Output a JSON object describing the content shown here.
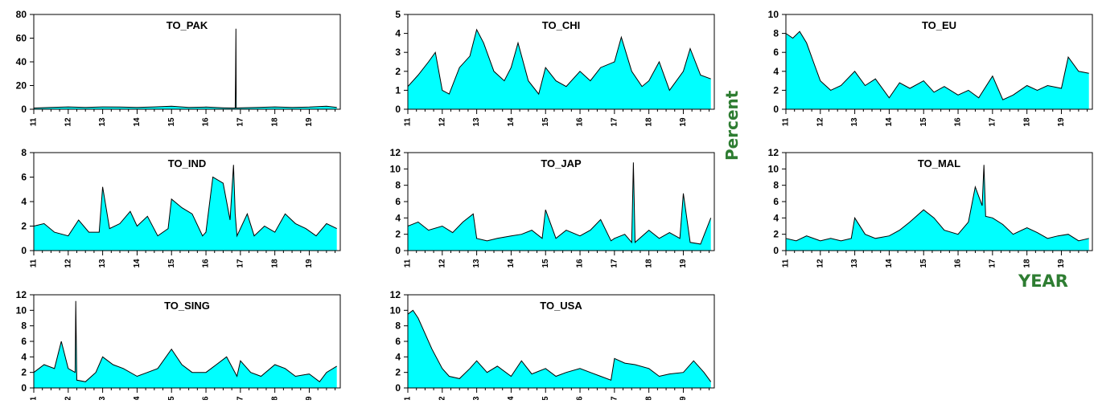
{
  "ylabel": "Percent",
  "xlabel": "YEAR",
  "chart_data": [
    {
      "type": "area",
      "title": "TO_PAK",
      "ylim": [
        0,
        80
      ],
      "yticks": [
        "0",
        "20",
        "40",
        "60",
        "80"
      ],
      "xticks": [
        "11",
        "12",
        "13",
        "14",
        "15",
        "16",
        "17",
        "18",
        "19"
      ],
      "color": "#00ffff",
      "x": [
        2011.0,
        2011.5,
        2012.0,
        2012.5,
        2013.0,
        2013.5,
        2014.0,
        2014.5,
        2015.0,
        2015.5,
        2016.0,
        2016.5,
        2016.85,
        2016.86,
        2016.87,
        2016.88,
        2017.0,
        2017.5,
        2018.0,
        2018.5,
        2019.0,
        2019.5,
        2019.8
      ],
      "values": [
        1,
        1.5,
        2,
        1.5,
        2,
        1.8,
        1.5,
        2,
        2.5,
        1.5,
        1.8,
        1.2,
        1,
        30,
        68,
        1,
        1.2,
        1.5,
        2,
        1.5,
        1.8,
        2.5,
        1.5
      ]
    },
    {
      "type": "area",
      "title": "TO_CHI",
      "ylim": [
        0,
        5
      ],
      "yticks": [
        "0",
        "1",
        "2",
        "3",
        "4",
        "5"
      ],
      "xticks": [
        "11",
        "12",
        "13",
        "14",
        "15",
        "16",
        "17",
        "18",
        "19"
      ],
      "color": "#00ffff",
      "x": [
        2011.0,
        2011.3,
        2011.6,
        2011.8,
        2012.0,
        2012.2,
        2012.5,
        2012.8,
        2013.0,
        2013.2,
        2013.5,
        2013.8,
        2014.0,
        2014.2,
        2014.5,
        2014.8,
        2015.0,
        2015.3,
        2015.6,
        2016.0,
        2016.3,
        2016.6,
        2017.0,
        2017.2,
        2017.5,
        2017.8,
        2018.0,
        2018.3,
        2018.6,
        2019.0,
        2019.2,
        2019.5,
        2019.8
      ],
      "values": [
        1.2,
        1.8,
        2.5,
        3.0,
        1.0,
        0.8,
        2.2,
        2.8,
        4.2,
        3.5,
        2.0,
        1.5,
        2.2,
        3.5,
        1.5,
        0.8,
        2.2,
        1.5,
        1.2,
        2.0,
        1.5,
        2.2,
        2.5,
        3.8,
        2.0,
        1.2,
        1.5,
        2.5,
        1.0,
        2.0,
        3.2,
        1.8,
        1.6
      ]
    },
    {
      "type": "area",
      "title": "TO_EU",
      "ylim": [
        0,
        10
      ],
      "yticks": [
        "0",
        "2",
        "4",
        "6",
        "8",
        "10"
      ],
      "xticks": [
        "11",
        "12",
        "13",
        "14",
        "15",
        "16",
        "17",
        "18",
        "19"
      ],
      "color": "#00ffff",
      "x": [
        2011.0,
        2011.2,
        2011.4,
        2011.6,
        2011.8,
        2012.0,
        2012.3,
        2012.6,
        2013.0,
        2013.3,
        2013.6,
        2014.0,
        2014.3,
        2014.6,
        2015.0,
        2015.3,
        2015.6,
        2016.0,
        2016.3,
        2016.6,
        2017.0,
        2017.3,
        2017.6,
        2018.0,
        2018.3,
        2018.6,
        2019.0,
        2019.2,
        2019.5,
        2019.8
      ],
      "values": [
        8,
        7.5,
        8.2,
        7,
        5,
        3,
        2,
        2.5,
        4,
        2.5,
        3.2,
        1.2,
        2.8,
        2.2,
        3,
        1.8,
        2.4,
        1.5,
        2,
        1.2,
        3.5,
        1.0,
        1.5,
        2.5,
        2.0,
        2.5,
        2.2,
        5.5,
        4.0,
        3.8
      ]
    },
    {
      "type": "area",
      "title": "TO_IND",
      "ylim": [
        0,
        8
      ],
      "yticks": [
        "0",
        "2",
        "4",
        "6",
        "8"
      ],
      "xticks": [
        "11",
        "12",
        "13",
        "14",
        "15",
        "16",
        "17",
        "18",
        "19"
      ],
      "color": "#00ffff",
      "x": [
        2011.0,
        2011.3,
        2011.6,
        2012.0,
        2012.3,
        2012.6,
        2012.9,
        2013.0,
        2013.2,
        2013.5,
        2013.8,
        2014.0,
        2014.3,
        2014.6,
        2014.9,
        2015.0,
        2015.3,
        2015.6,
        2015.9,
        2016.0,
        2016.2,
        2016.5,
        2016.7,
        2016.8,
        2016.85,
        2016.9,
        2017.2,
        2017.4,
        2017.7,
        2018.0,
        2018.3,
        2018.6,
        2018.9,
        2019.2,
        2019.5,
        2019.8
      ],
      "values": [
        2,
        2.2,
        1.5,
        1.2,
        2.5,
        1.5,
        1.5,
        5.2,
        1.8,
        2.2,
        3.2,
        2.0,
        2.8,
        1.2,
        1.8,
        4.2,
        3.5,
        3.0,
        1.2,
        1.5,
        6.0,
        5.5,
        2.5,
        7.0,
        3.0,
        1.2,
        3.0,
        1.2,
        2.0,
        1.5,
        3.0,
        2.2,
        1.8,
        1.2,
        2.2,
        1.8
      ]
    },
    {
      "type": "area",
      "title": "TO_JAP",
      "ylim": [
        0,
        12
      ],
      "yticks": [
        "0",
        "2",
        "4",
        "6",
        "8",
        "10",
        "12"
      ],
      "xticks": [
        "11",
        "12",
        "13",
        "14",
        "15",
        "16",
        "17",
        "18",
        "19"
      ],
      "color": "#00ffff",
      "x": [
        2011.0,
        2011.3,
        2011.6,
        2012.0,
        2012.3,
        2012.6,
        2012.9,
        2013.0,
        2013.3,
        2013.6,
        2014.0,
        2014.3,
        2014.6,
        2014.9,
        2015.0,
        2015.3,
        2015.6,
        2016.0,
        2016.3,
        2016.6,
        2016.9,
        2017.0,
        2017.3,
        2017.5,
        2017.55,
        2017.6,
        2018.0,
        2018.3,
        2018.6,
        2018.9,
        2019.0,
        2019.2,
        2019.5,
        2019.8
      ],
      "values": [
        3,
        3.5,
        2.5,
        3.0,
        2.2,
        3.5,
        4.5,
        1.5,
        1.2,
        1.5,
        1.8,
        2.0,
        2.5,
        1.5,
        5.0,
        1.5,
        2.5,
        1.8,
        2.5,
        3.8,
        1.2,
        1.5,
        2.0,
        1.0,
        10.8,
        1.0,
        2.5,
        1.5,
        2.2,
        1.5,
        7.0,
        1.0,
        0.8,
        4.0
      ]
    },
    {
      "type": "area",
      "title": "TO_MAL",
      "ylim": [
        0,
        12
      ],
      "yticks": [
        "0",
        "2",
        "4",
        "6",
        "8",
        "10",
        "12"
      ],
      "xticks": [
        "11",
        "12",
        "13",
        "14",
        "15",
        "16",
        "17",
        "18",
        "19"
      ],
      "color": "#00ffff",
      "x": [
        2011.0,
        2011.3,
        2011.6,
        2012.0,
        2012.3,
        2012.6,
        2012.9,
        2013.0,
        2013.3,
        2013.6,
        2014.0,
        2014.3,
        2014.6,
        2015.0,
        2015.3,
        2015.6,
        2016.0,
        2016.3,
        2016.5,
        2016.7,
        2016.75,
        2016.8,
        2017.0,
        2017.3,
        2017.6,
        2018.0,
        2018.3,
        2018.6,
        2018.9,
        2019.2,
        2019.5,
        2019.8
      ],
      "values": [
        1.5,
        1.2,
        1.8,
        1.2,
        1.5,
        1.2,
        1.5,
        4.0,
        2.0,
        1.5,
        1.8,
        2.5,
        3.5,
        5.0,
        4.0,
        2.5,
        2.0,
        3.5,
        7.8,
        5.5,
        10.5,
        4.2,
        4.0,
        3.2,
        2.0,
        2.8,
        2.2,
        1.5,
        1.8,
        2.0,
        1.2,
        1.5
      ]
    },
    {
      "type": "area",
      "title": "TO_SING",
      "ylim": [
        0,
        12
      ],
      "yticks": [
        "0",
        "2",
        "4",
        "6",
        "8",
        "10",
        "12"
      ],
      "xticks": [
        "11",
        "12",
        "13",
        "14",
        "15",
        "16",
        "17",
        "18",
        "19"
      ],
      "color": "#00ffff",
      "x": [
        2011.0,
        2011.3,
        2011.6,
        2011.8,
        2012.0,
        2012.2,
        2012.22,
        2012.25,
        2012.5,
        2012.8,
        2013.0,
        2013.3,
        2013.6,
        2014.0,
        2014.3,
        2014.6,
        2015.0,
        2015.3,
        2015.6,
        2016.0,
        2016.3,
        2016.6,
        2016.9,
        2017.0,
        2017.3,
        2017.6,
        2018.0,
        2018.3,
        2018.6,
        2019.0,
        2019.3,
        2019.5,
        2019.8
      ],
      "values": [
        2,
        3.0,
        2.5,
        6.0,
        2.5,
        2.0,
        11.2,
        1.0,
        0.8,
        2.0,
        4.0,
        3.0,
        2.5,
        1.5,
        2.0,
        2.5,
        5.0,
        3.0,
        2.0,
        2.0,
        3.0,
        4.0,
        1.5,
        3.5,
        2.0,
        1.5,
        3.0,
        2.5,
        1.5,
        1.8,
        0.8,
        2.0,
        2.8
      ]
    },
    {
      "type": "area",
      "title": "TO_USA",
      "ylim": [
        0,
        12
      ],
      "yticks": [
        "0",
        "2",
        "4",
        "6",
        "8",
        "10",
        "12"
      ],
      "xticks": [
        "11",
        "12",
        "13",
        "14",
        "15",
        "16",
        "17",
        "18",
        "19"
      ],
      "color": "#00ffff",
      "x": [
        2011.0,
        2011.15,
        2011.3,
        2011.5,
        2011.7,
        2012.0,
        2012.2,
        2012.5,
        2012.8,
        2013.0,
        2013.3,
        2013.6,
        2014.0,
        2014.3,
        2014.6,
        2015.0,
        2015.3,
        2015.6,
        2016.0,
        2016.3,
        2016.6,
        2016.9,
        2017.0,
        2017.3,
        2017.6,
        2018.0,
        2018.3,
        2018.6,
        2019.0,
        2019.3,
        2019.6,
        2019.8
      ],
      "values": [
        9.5,
        10.0,
        9.0,
        7.0,
        5.0,
        2.5,
        1.5,
        1.2,
        2.5,
        3.5,
        2.0,
        2.8,
        1.5,
        3.5,
        1.8,
        2.5,
        1.5,
        2.0,
        2.5,
        2.0,
        1.5,
        1.0,
        3.8,
        3.2,
        3.0,
        2.5,
        1.5,
        1.8,
        2.0,
        3.5,
        2.0,
        0.8
      ]
    }
  ]
}
